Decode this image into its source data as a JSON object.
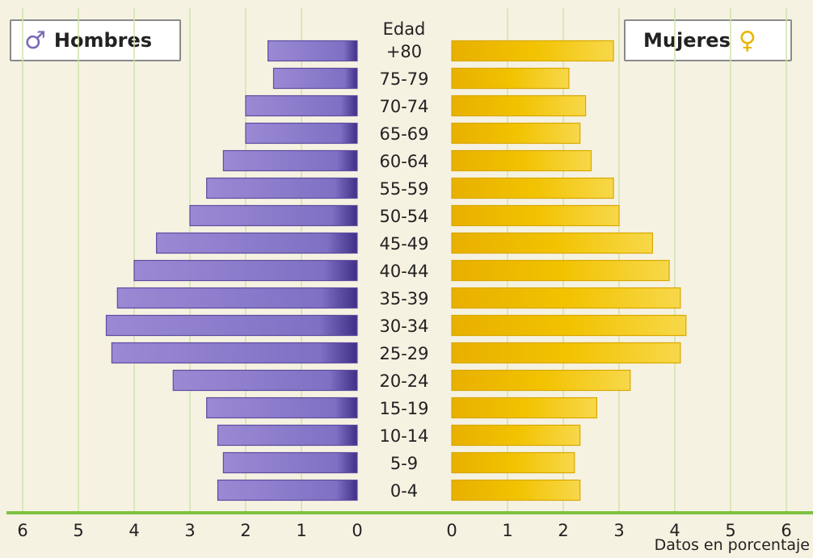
{
  "legend": {
    "men_label": "Hombres",
    "women_label": "Mujeres"
  },
  "footer_note": "Datos en porcentaje",
  "colors": {
    "men": "#9a8ad4",
    "women": "#f2c200",
    "axis": "#7cc242",
    "grid": "#cfe3a8"
  },
  "chart_data": {
    "type": "bar",
    "orientation": "horizontal",
    "ages_title": "Edad",
    "categories": [
      "+80",
      "75-79",
      "70-74",
      "65-69",
      "60-64",
      "55-59",
      "50-54",
      "45-49",
      "40-44",
      "35-39",
      "30-34",
      "25-29",
      "20-24",
      "15-19",
      "10-14",
      "5-9",
      "0-4"
    ],
    "series": [
      {
        "name": "Hombres",
        "values": [
          1.6,
          1.5,
          2.0,
          2.0,
          2.4,
          2.7,
          3.0,
          3.6,
          4.0,
          4.3,
          4.5,
          4.4,
          3.3,
          2.7,
          2.5,
          2.4,
          2.5
        ]
      },
      {
        "name": "Mujeres",
        "values": [
          2.9,
          2.1,
          2.4,
          2.3,
          2.5,
          2.9,
          3.0,
          3.6,
          3.9,
          4.1,
          4.2,
          4.1,
          3.2,
          2.6,
          2.3,
          2.2,
          2.3
        ]
      }
    ],
    "men_ticks": [
      "6",
      "5",
      "4",
      "3",
      "2",
      "1",
      "0"
    ],
    "women_ticks": [
      "0",
      "1",
      "2",
      "3",
      "4",
      "5",
      "6"
    ],
    "xlim": [
      0,
      6
    ],
    "grid": true
  }
}
